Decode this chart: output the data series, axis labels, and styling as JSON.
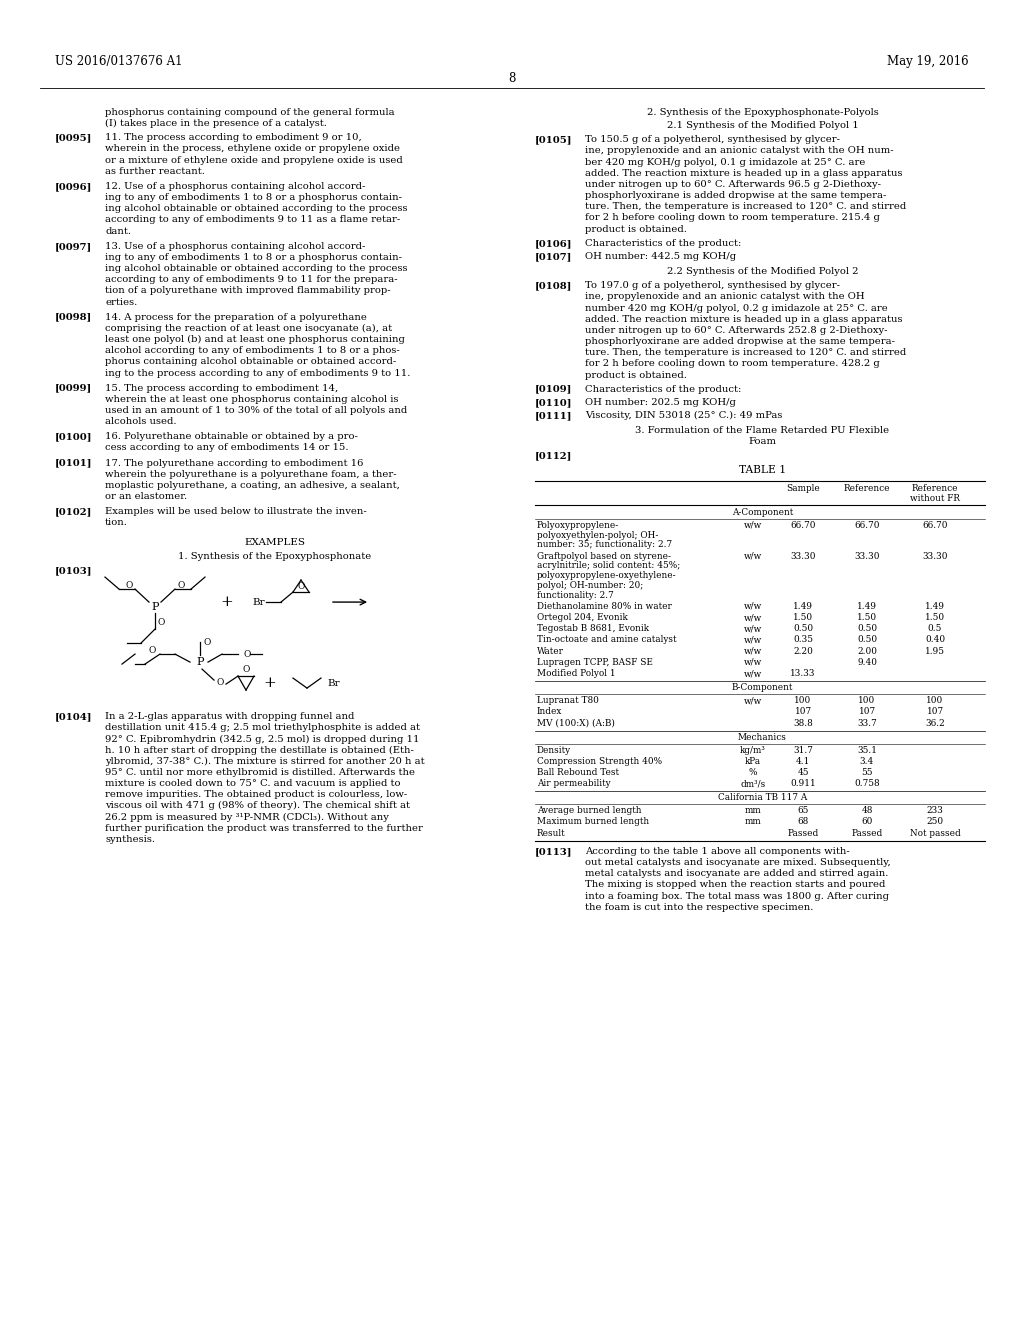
{
  "bg_color": "#ffffff",
  "header_left": "US 2016/0137676 A1",
  "header_right": "May 19, 2016",
  "page_number": "8",
  "table_title": "TABLE 1",
  "table_section_a": "A-Component",
  "table_rows_a": [
    [
      "Polyoxypropylene-\npolyoxyethylen-polyol; OH-\nnumber: 35; functionality: 2.7",
      "w/w",
      "66.70",
      "66.70",
      "66.70"
    ],
    [
      "Graftpolyol based on styrene-\nacrylnitrile; solid content: 45%;\npolyoxypropylene-oxyethylene-\npolyol; OH-number: 20;\nfunctionality: 2.7",
      "w/w",
      "33.30",
      "33.30",
      "33.30"
    ],
    [
      "Diethanolamine 80% in water",
      "w/w",
      "1.49",
      "1.49",
      "1.49"
    ],
    [
      "Ortegol 204, Evonik",
      "w/w",
      "1.50",
      "1.50",
      "1.50"
    ],
    [
      "Tegostab B 8681, Evonik",
      "w/w",
      "0.50",
      "0.50",
      "0.5"
    ],
    [
      "Tin-octoate and amine catalyst",
      "w/w",
      "0.35",
      "0.50",
      "0.40"
    ],
    [
      "Water",
      "w/w",
      "2.20",
      "2.00",
      "1.95"
    ],
    [
      "Lupragen TCPP, BASF SE",
      "w/w",
      "",
      "9.40",
      ""
    ],
    [
      "Modified Polyol 1",
      "w/w",
      "13.33",
      "",
      ""
    ]
  ],
  "table_section_b": "B-Component",
  "table_rows_b": [
    [
      "Lupranat T80",
      "w/w",
      "100",
      "100",
      "100"
    ],
    [
      "Index",
      "",
      "107",
      "107",
      "107"
    ],
    [
      "MV (100:X) (A:B)",
      "",
      "38.8",
      "33.7",
      "36.2"
    ]
  ],
  "table_section_mech": "Mechanics",
  "table_rows_mech": [
    [
      "Density",
      "kg/m³",
      "31.7",
      "35.1",
      ""
    ],
    [
      "Compression Strength 40%",
      "kPa",
      "4.1",
      "3.4",
      ""
    ],
    [
      "Ball Rebound Test",
      "%",
      "45",
      "55",
      ""
    ],
    [
      "Air permeability",
      "dm³/s",
      "0.911",
      "0.758",
      ""
    ]
  ],
  "table_section_cal": "California TB 117 A",
  "table_rows_cal": [
    [
      "Average burned length",
      "mm",
      "65",
      "48",
      "233"
    ],
    [
      "Maximum burned length",
      "mm",
      "68",
      "60",
      "250"
    ],
    [
      "Result",
      "",
      "Passed",
      "Passed",
      "Not passed"
    ]
  ]
}
